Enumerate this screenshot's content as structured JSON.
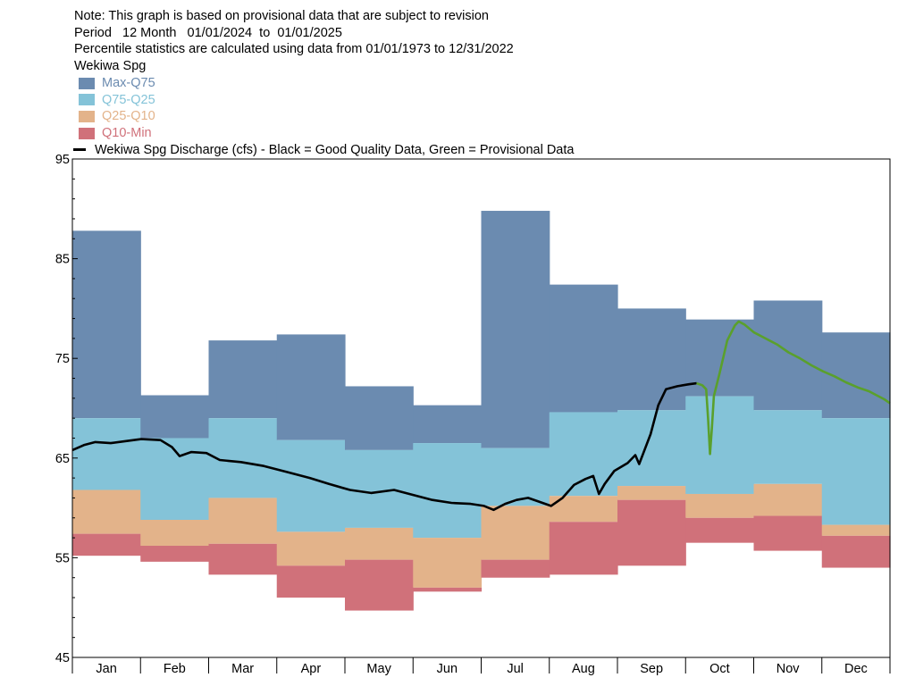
{
  "notes": {
    "line1": "Note: This graph is based on provisional data that are subject to revision",
    "period": "Period   12 Month   01/01/2024  to  01/01/2025",
    "stats": "Percentile statistics are calculated using data from 01/01/1973 to 12/31/2022",
    "site": "Wekiwa Spg"
  },
  "legend": [
    {
      "label": "Max-Q75",
      "color": "#6b8bb0",
      "text_color": "#6b8bb0"
    },
    {
      "label": "Q75-Q25",
      "color": "#84c3d8",
      "text_color": "#84c3d8"
    },
    {
      "label": "Q25-Q10",
      "color": "#e3b38a",
      "text_color": "#e3b38a"
    },
    {
      "label": "Q10-Min",
      "color": "#d0717a",
      "text_color": "#d0717a"
    }
  ],
  "line_legend": "Wekiwa Spg Discharge (cfs) - Black = Good Quality Data, Green = Provisional Data",
  "chart_data": {
    "type": "area",
    "ylim": [
      45,
      95
    ],
    "yticks": [
      "95",
      "85",
      "75",
      "65",
      "55",
      "45"
    ],
    "months": [
      "Jan",
      "Feb",
      "Mar",
      "Apr",
      "May",
      "Jun",
      "Jul",
      "Aug",
      "Sep",
      "Oct",
      "Nov",
      "Dec"
    ],
    "percentile_bands": {
      "max": [
        87.8,
        71.3,
        76.8,
        77.4,
        72.2,
        70.3,
        89.8,
        82.4,
        80.0,
        78.9,
        80.8,
        77.6
      ],
      "q75": [
        69.0,
        67.0,
        69.0,
        66.8,
        65.8,
        66.5,
        66.0,
        69.6,
        69.8,
        71.2,
        69.8,
        69.0
      ],
      "q25": [
        61.8,
        58.8,
        61.0,
        57.6,
        58.0,
        57.0,
        60.2,
        61.2,
        62.2,
        61.4,
        62.4,
        58.3
      ],
      "q10": [
        57.4,
        56.2,
        56.4,
        54.2,
        54.8,
        52.0,
        54.8,
        58.6,
        60.8,
        59.0,
        59.2,
        57.2
      ],
      "min": [
        55.2,
        54.6,
        53.3,
        51.0,
        49.7,
        51.6,
        53.0,
        53.3,
        54.2,
        56.5,
        55.7,
        54.0
      ]
    },
    "discharge_good": [
      [
        0,
        65.8
      ],
      [
        6,
        66.3
      ],
      [
        12,
        66.6
      ],
      [
        20,
        66.5
      ],
      [
        28,
        66.7
      ],
      [
        36,
        66.9
      ],
      [
        46,
        66.8
      ],
      [
        52,
        66.1
      ],
      [
        56,
        65.2
      ],
      [
        62,
        65.6
      ],
      [
        70,
        65.5
      ],
      [
        77,
        64.8
      ],
      [
        88,
        64.6
      ],
      [
        100,
        64.2
      ],
      [
        112,
        63.6
      ],
      [
        124,
        63.0
      ],
      [
        134,
        62.4
      ],
      [
        145,
        61.8
      ],
      [
        156,
        61.5
      ],
      [
        168,
        61.8
      ],
      [
        178,
        61.3
      ],
      [
        188,
        60.8
      ],
      [
        198,
        60.5
      ],
      [
        208,
        60.4
      ],
      [
        215,
        60.2
      ],
      [
        220,
        59.8
      ],
      [
        226,
        60.4
      ],
      [
        232,
        60.8
      ],
      [
        238,
        61.0
      ],
      [
        244,
        60.6
      ],
      [
        250,
        60.2
      ],
      [
        256,
        61.0
      ],
      [
        262,
        62.3
      ],
      [
        268,
        62.9
      ],
      [
        272,
        63.2
      ],
      [
        275,
        61.4
      ],
      [
        278,
        62.4
      ],
      [
        283,
        63.7
      ],
      [
        290,
        64.5
      ],
      [
        294,
        65.3
      ],
      [
        296,
        64.4
      ],
      [
        298,
        65.4
      ],
      [
        302,
        67.4
      ],
      [
        306,
        70.3
      ],
      [
        310,
        71.9
      ],
      [
        316,
        72.2
      ],
      [
        322,
        72.4
      ],
      [
        326,
        72.5
      ]
    ],
    "discharge_provisional": [
      [
        326,
        72.5
      ],
      [
        329,
        72.3
      ],
      [
        331,
        71.9
      ],
      [
        332,
        69.0
      ],
      [
        333,
        65.4
      ],
      [
        334,
        68.0
      ],
      [
        335,
        71.2
      ],
      [
        338,
        73.5
      ],
      [
        342,
        76.8
      ],
      [
        346,
        78.3
      ],
      [
        348,
        78.7
      ],
      [
        351,
        78.4
      ],
      [
        356,
        77.6
      ],
      [
        362,
        77.0
      ],
      [
        368,
        76.4
      ],
      [
        374,
        75.6
      ],
      [
        380,
        75.0
      ],
      [
        386,
        74.3
      ],
      [
        392,
        73.7
      ],
      [
        398,
        73.2
      ],
      [
        404,
        72.6
      ],
      [
        410,
        72.1
      ],
      [
        416,
        71.7
      ],
      [
        420,
        71.3
      ],
      [
        424,
        70.9
      ],
      [
        427,
        70.5
      ]
    ]
  }
}
